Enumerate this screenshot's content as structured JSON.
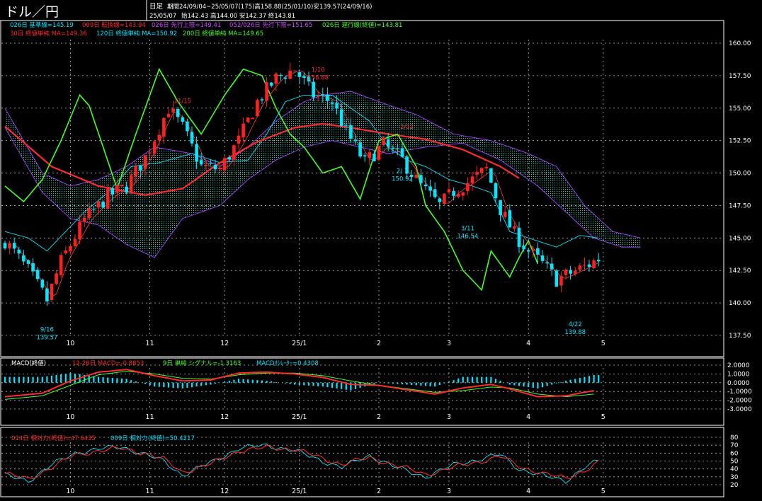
{
  "title": "ドル／円",
  "header": {
    "period_kind": "日足",
    "period_info": "期間24/09/04~25/05/07(175)高158.88(25/01/10)安139.57(24/09/16)",
    "date": "25/05/07",
    "ohlc": "始142.43 高144.00 安142.37 終143.81"
  },
  "legend_main": [
    {
      "text": "026日 基準線=145.19",
      "color": "#00e5ff"
    },
    {
      "text": "009日 転換線=143.94",
      "color": "#ff2a2a"
    },
    {
      "text": "026日 先行上限=149.41",
      "color": "#cc44ff"
    },
    {
      "text": "052/026日 先行下限=151.65",
      "color": "#cc44ff"
    },
    {
      "text": "026日 遅行線(終値)=143.81",
      "color": "#44ff22"
    },
    {
      "text": "30日 終値単純 MA=149.36",
      "color": "#ff2a2a"
    },
    {
      "text": "120日 終値単純 MA=150.92",
      "color": "#00e5ff"
    },
    {
      "text": "200日 終値単純 MA=149.65",
      "color": "#44ff22"
    }
  ],
  "legend_macd": [
    {
      "text": "MACD(終値)",
      "color": "#ffffff"
    },
    {
      "text": "12-26日 MACD=-0.8853",
      "color": "#ff2a2a"
    },
    {
      "text": "9日 単純 シグナル=-1.3163",
      "color": "#44ff22"
    },
    {
      "text": "MACDｵｼﾚｰﾀｰ=0.4308",
      "color": "#00e5ff"
    }
  ],
  "legend_rsi": [
    {
      "text": "014日 相対力(終値)=47.6435",
      "color": "#ff2a2a"
    },
    {
      "text": "009日 相対力(終値)=50.4217",
      "color": "#00e5ff"
    }
  ],
  "colors": {
    "up": "#ff2020",
    "down": "#00e8ff",
    "kumo": "#3fe0c8",
    "kumo_edge": "#b040ff",
    "grid": "#ffffff"
  },
  "chart_data": [
    {
      "type": "candlestick",
      "x_labels": [
        "10",
        "11",
        "12",
        "25/1",
        "2",
        "3",
        "4",
        "5"
      ],
      "ylim": [
        137.5,
        160.0
      ],
      "yticks": [
        "160.00",
        "157.50",
        "155.00",
        "152.50",
        "150.00",
        "147.50",
        "145.00",
        "142.50",
        "140.00",
        "137.50"
      ],
      "annotations": [
        {
          "text": "9/16",
          "value": "139.57",
          "color": "#00e5ff"
        },
        {
          "text": "11/15",
          "value": "",
          "color": "#ff3030"
        },
        {
          "text": "1/10",
          "value": "158.88",
          "color": "#ff3030"
        },
        {
          "text": "2/12",
          "value": "",
          "color": "#ff3030"
        },
        {
          "text": "2/ 7",
          "value": "150.92",
          "color": "#00e5ff"
        },
        {
          "text": "3/11",
          "value": "146.54",
          "color": "#00e5ff"
        },
        {
          "text": "4/22",
          "value": "139.88",
          "color": "#00e5ff"
        }
      ],
      "close_path": [
        [
          0,
          144.8
        ],
        [
          5,
          142.5
        ],
        [
          9,
          140.2
        ],
        [
          12,
          143.2
        ],
        [
          17,
          146.4
        ],
        [
          22,
          148.2
        ],
        [
          26,
          149.0
        ],
        [
          30,
          151.2
        ],
        [
          35,
          155.0
        ],
        [
          38,
          153.5
        ],
        [
          42,
          150.5
        ],
        [
          46,
          150.3
        ],
        [
          50,
          152.5
        ],
        [
          54,
          155.5
        ],
        [
          58,
          157.3
        ],
        [
          62,
          158.0
        ],
        [
          66,
          156.0
        ],
        [
          70,
          155.5
        ],
        [
          73,
          153.2
        ],
        [
          77,
          150.8
        ],
        [
          81,
          152.2
        ],
        [
          85,
          151.0
        ],
        [
          89,
          149.0
        ],
        [
          93,
          147.5
        ],
        [
          96,
          148.6
        ],
        [
          100,
          149.5
        ],
        [
          103,
          150.3
        ],
        [
          106,
          147.2
        ],
        [
          109,
          145.3
        ],
        [
          112,
          144.0
        ],
        [
          115,
          143.0
        ],
        [
          118,
          141.8
        ],
        [
          121,
          142.3
        ],
        [
          124,
          142.8
        ],
        [
          127,
          143.4
        ]
      ],
      "cloud_upper": [
        [
          0,
          155.0
        ],
        [
          8,
          150.0
        ],
        [
          14,
          149.0
        ],
        [
          20,
          149.5
        ],
        [
          26,
          150.5
        ],
        [
          32,
          152.0
        ],
        [
          40,
          151.5
        ],
        [
          46,
          150.5
        ],
        [
          52,
          152.0
        ],
        [
          58,
          154.0
        ],
        [
          64,
          155.5
        ],
        [
          68,
          156.0
        ],
        [
          74,
          156.3
        ],
        [
          80,
          155.5
        ],
        [
          88,
          154.5
        ],
        [
          96,
          153.0
        ],
        [
          104,
          152.5
        ],
        [
          112,
          151.5
        ],
        [
          118,
          150.5
        ],
        [
          124,
          147.5
        ],
        [
          130,
          145.5
        ],
        [
          136,
          145.0
        ]
      ],
      "cloud_lower": [
        [
          0,
          153.5
        ],
        [
          8,
          148.5
        ],
        [
          14,
          146.5
        ],
        [
          20,
          146.0
        ],
        [
          26,
          144.5
        ],
        [
          32,
          143.5
        ],
        [
          38,
          146.5
        ],
        [
          46,
          147.5
        ],
        [
          52,
          149.5
        ],
        [
          58,
          151.0
        ],
        [
          64,
          152.0
        ],
        [
          70,
          152.5
        ],
        [
          76,
          152.0
        ],
        [
          82,
          151.5
        ],
        [
          90,
          152.0
        ],
        [
          98,
          152.3
        ],
        [
          106,
          151.0
        ],
        [
          114,
          149.0
        ],
        [
          120,
          147.0
        ],
        [
          126,
          145.0
        ],
        [
          132,
          144.3
        ],
        [
          136,
          144.3
        ]
      ],
      "ma200": [
        [
          0,
          153.6
        ],
        [
          10,
          150.5
        ],
        [
          20,
          149.0
        ],
        [
          30,
          148.3
        ],
        [
          38,
          148.8
        ],
        [
          46,
          150.8
        ],
        [
          54,
          152.4
        ],
        [
          62,
          153.5
        ],
        [
          68,
          153.8
        ],
        [
          74,
          153.5
        ],
        [
          82,
          153.0
        ],
        [
          90,
          152.6
        ],
        [
          98,
          151.8
        ],
        [
          106,
          150.5
        ],
        [
          110,
          149.6
        ]
      ],
      "kijun": [
        [
          0,
          145.5
        ],
        [
          5,
          145.0
        ],
        [
          9,
          144.0
        ],
        [
          13,
          145.5
        ],
        [
          17,
          147.0
        ],
        [
          22,
          148.5
        ],
        [
          27,
          150.5
        ],
        [
          33,
          150.8
        ],
        [
          40,
          151.5
        ],
        [
          46,
          150.8
        ],
        [
          52,
          151.0
        ],
        [
          56,
          153.0
        ],
        [
          60,
          155.5
        ],
        [
          64,
          156.0
        ],
        [
          70,
          156.0
        ],
        [
          74,
          155.0
        ],
        [
          78,
          154.0
        ],
        [
          82,
          152.0
        ],
        [
          86,
          151.0
        ],
        [
          90,
          150.5
        ],
        [
          95,
          149.5
        ],
        [
          100,
          149.0
        ],
        [
          104,
          148.5
        ],
        [
          108,
          145.5
        ],
        [
          112,
          145.0
        ],
        [
          118,
          144.3
        ],
        [
          123,
          145.2
        ],
        [
          127,
          145.0
        ]
      ],
      "chikou": [
        [
          0,
          149.0
        ],
        [
          4,
          147.8
        ],
        [
          8,
          149.5
        ],
        [
          12,
          152.5
        ],
        [
          16,
          156.0
        ],
        [
          18,
          155.2
        ],
        [
          21,
          152.0
        ],
        [
          24,
          148.8
        ],
        [
          28,
          153.0
        ],
        [
          33,
          158.0
        ],
        [
          37,
          155.5
        ],
        [
          42,
          153.0
        ],
        [
          47,
          156.0
        ],
        [
          51,
          158.0
        ],
        [
          55,
          157.5
        ],
        [
          58,
          155.0
        ],
        [
          61,
          153.0
        ],
        [
          64,
          152.0
        ],
        [
          68,
          150.0
        ],
        [
          72,
          150.5
        ],
        [
          76,
          148.0
        ],
        [
          80,
          152.5
        ],
        [
          84,
          153.0
        ],
        [
          88,
          150.5
        ],
        [
          90,
          147.5
        ],
        [
          94,
          145.5
        ],
        [
          98,
          142.5
        ],
        [
          102,
          141.0
        ],
        [
          104,
          144.0
        ],
        [
          108,
          142.0
        ],
        [
          110,
          143.5
        ],
        [
          112,
          144.8
        ],
        [
          114,
          143.0
        ]
      ]
    },
    {
      "type": "bar",
      "name": "MACD",
      "x_labels": [
        "10",
        "11",
        "12",
        "25/1",
        "2",
        "3",
        "4",
        "5"
      ],
      "ylim": [
        -3.0,
        2.0
      ],
      "yticks": [
        "2.0000",
        "1.0000",
        "0.0000",
        "-1.0000",
        "-2.0000",
        "-3.0000"
      ],
      "macd": [
        [
          0,
          -1.6
        ],
        [
          8,
          -1.2
        ],
        [
          14,
          0.2
        ],
        [
          20,
          1.2
        ],
        [
          26,
          1.5
        ],
        [
          32,
          0.8
        ],
        [
          38,
          0.2
        ],
        [
          44,
          0.3
        ],
        [
          50,
          1.1
        ],
        [
          56,
          1.2
        ],
        [
          62,
          1.0
        ],
        [
          68,
          0.6
        ],
        [
          74,
          -0.2
        ],
        [
          80,
          -0.3
        ],
        [
          86,
          -0.8
        ],
        [
          92,
          -1.3
        ],
        [
          98,
          -0.6
        ],
        [
          104,
          -0.2
        ],
        [
          108,
          -0.7
        ],
        [
          114,
          -1.6
        ],
        [
          120,
          -1.5
        ],
        [
          126,
          -0.9
        ]
      ],
      "signal": [
        [
          0,
          -1.9
        ],
        [
          8,
          -1.5
        ],
        [
          14,
          -0.3
        ],
        [
          20,
          0.9
        ],
        [
          26,
          1.3
        ],
        [
          32,
          1.0
        ],
        [
          38,
          0.5
        ],
        [
          44,
          0.4
        ],
        [
          50,
          0.9
        ],
        [
          56,
          1.1
        ],
        [
          62,
          1.1
        ],
        [
          68,
          0.8
        ],
        [
          74,
          0.2
        ],
        [
          80,
          -0.3
        ],
        [
          86,
          -0.7
        ],
        [
          92,
          -1.1
        ],
        [
          98,
          -0.9
        ],
        [
          104,
          -0.5
        ],
        [
          108,
          -0.6
        ],
        [
          114,
          -1.3
        ],
        [
          120,
          -1.6
        ],
        [
          126,
          -1.3
        ]
      ]
    },
    {
      "type": "line",
      "name": "RSI",
      "x_labels": [
        "10",
        "11",
        "12",
        "25/1",
        "2",
        "3",
        "4",
        "5"
      ],
      "ylim": [
        20,
        80
      ],
      "yticks": [
        "80",
        "70",
        "60",
        "50",
        "40",
        "30",
        "20"
      ],
      "rsi14": [
        [
          0,
          34
        ],
        [
          5,
          27
        ],
        [
          10,
          42
        ],
        [
          15,
          58
        ],
        [
          20,
          63
        ],
        [
          25,
          66
        ],
        [
          30,
          60
        ],
        [
          34,
          52
        ],
        [
          38,
          36
        ],
        [
          44,
          46
        ],
        [
          50,
          63
        ],
        [
          56,
          67
        ],
        [
          62,
          65
        ],
        [
          68,
          53
        ],
        [
          72,
          46
        ],
        [
          78,
          54
        ],
        [
          84,
          44
        ],
        [
          90,
          33
        ],
        [
          96,
          42
        ],
        [
          102,
          50
        ],
        [
          106,
          56
        ],
        [
          110,
          43
        ],
        [
          116,
          33
        ],
        [
          120,
          28
        ],
        [
          124,
          38
        ],
        [
          127,
          48
        ]
      ],
      "rsi9": [
        [
          0,
          32
        ],
        [
          5,
          25
        ],
        [
          10,
          45
        ],
        [
          15,
          60
        ],
        [
          20,
          65
        ],
        [
          25,
          68
        ],
        [
          30,
          58
        ],
        [
          34,
          50
        ],
        [
          38,
          32
        ],
        [
          44,
          48
        ],
        [
          50,
          66
        ],
        [
          56,
          70
        ],
        [
          62,
          63
        ],
        [
          68,
          50
        ],
        [
          72,
          42
        ],
        [
          78,
          57
        ],
        [
          84,
          41
        ],
        [
          90,
          30
        ],
        [
          96,
          45
        ],
        [
          102,
          53
        ],
        [
          106,
          58
        ],
        [
          110,
          40
        ],
        [
          116,
          30
        ],
        [
          120,
          25
        ],
        [
          124,
          42
        ],
        [
          127,
          50
        ]
      ]
    }
  ]
}
